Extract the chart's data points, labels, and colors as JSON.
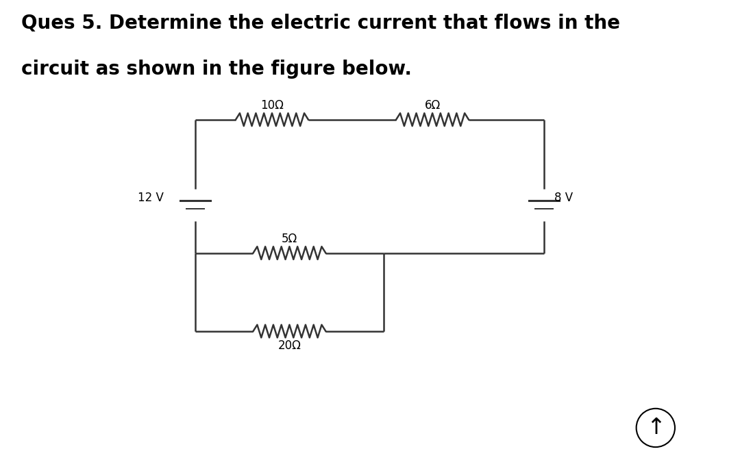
{
  "title_line1": "Ques 5. Determine the electric current that flows in the",
  "title_line2": "circuit as shown in the figure below.",
  "title_fontsize": 20,
  "background_color": "#ffffff",
  "circuit_color": "#333333",
  "text_color": "#000000",
  "label_R1": "10Ω",
  "label_R2": "6Ω",
  "label_R3": "5Ω",
  "label_R4": "20Ω",
  "label_B1": "12 V",
  "label_B2": "8 V",
  "arrow_label": "↑",
  "fig_width": 10.8,
  "fig_height": 6.72
}
